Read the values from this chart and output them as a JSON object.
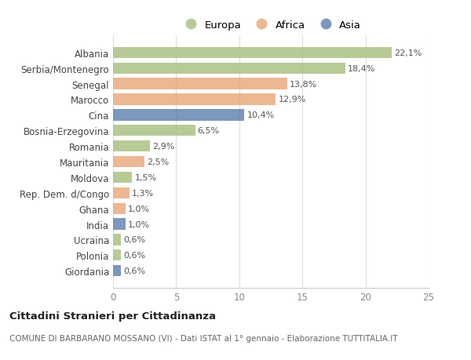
{
  "categories": [
    "Albania",
    "Serbia/Montenegro",
    "Senegal",
    "Marocco",
    "Cina",
    "Bosnia-Erzegovina",
    "Romania",
    "Mauritania",
    "Moldova",
    "Rep. Dem. d/Congo",
    "Ghana",
    "India",
    "Ucraina",
    "Polonia",
    "Giordania"
  ],
  "values": [
    22.1,
    18.4,
    13.8,
    12.9,
    10.4,
    6.5,
    2.9,
    2.5,
    1.5,
    1.3,
    1.0,
    1.0,
    0.6,
    0.6,
    0.6
  ],
  "labels": [
    "22,1%",
    "18,4%",
    "13,8%",
    "12,9%",
    "10,4%",
    "6,5%",
    "2,9%",
    "2,5%",
    "1,5%",
    "1,3%",
    "1,0%",
    "1,0%",
    "0,6%",
    "0,6%",
    "0,6%"
  ],
  "continents": [
    "Europa",
    "Europa",
    "Africa",
    "Africa",
    "Asia",
    "Europa",
    "Europa",
    "Africa",
    "Europa",
    "Africa",
    "Africa",
    "Asia",
    "Europa",
    "Europa",
    "Asia"
  ],
  "continent_colors": {
    "Europa": "#a8c080",
    "Africa": "#e8a87c",
    "Asia": "#6080b0"
  },
  "legend_entries": [
    "Europa",
    "Africa",
    "Asia"
  ],
  "legend_colors": [
    "#a8c080",
    "#e8a87c",
    "#6080b0"
  ],
  "xlim": [
    0,
    25
  ],
  "xticks": [
    0,
    5,
    10,
    15,
    20,
    25
  ],
  "title1": "Cittadini Stranieri per Cittadinanza",
  "title2": "COMUNE DI BARBARANO MOSSANO (VI) - Dati ISTAT al 1° gennaio - Elaborazione TUTTITALIA.IT",
  "background_color": "#ffffff",
  "grid_color": "#dddddd",
  "bar_height": 0.72,
  "bar_alpha": 0.82,
  "label_fontsize": 8.0,
  "ytick_fontsize": 8.5,
  "xtick_fontsize": 8.5
}
